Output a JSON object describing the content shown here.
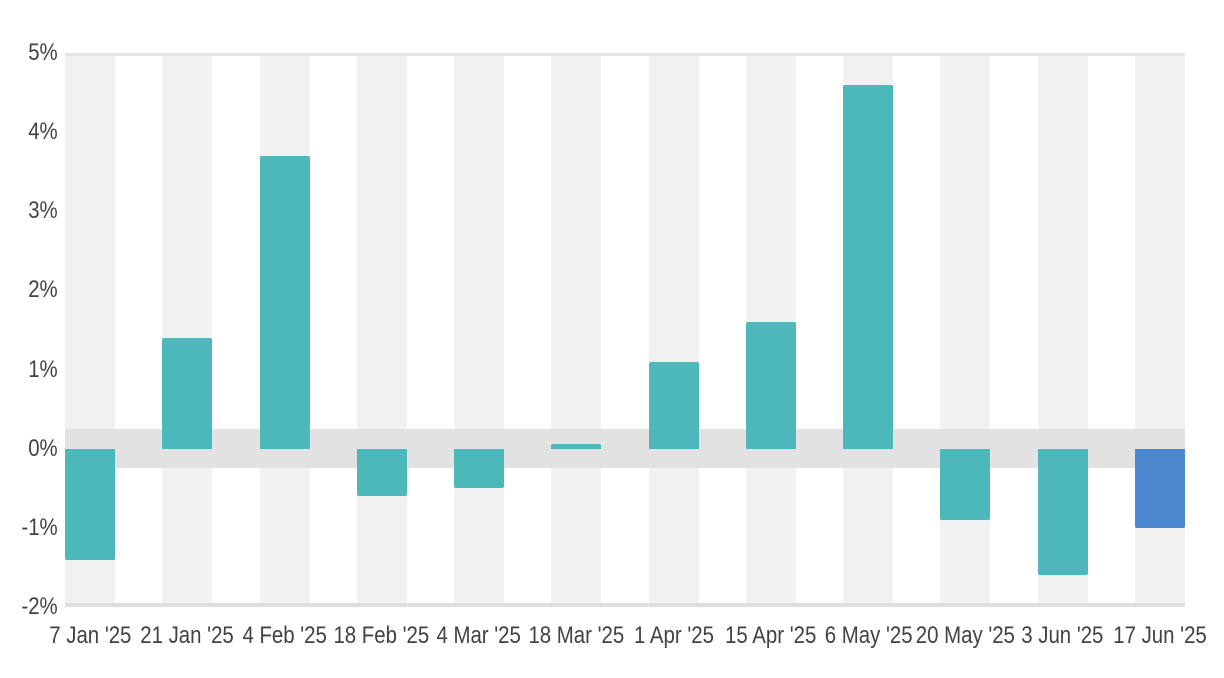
{
  "chart_data": {
    "type": "bar",
    "title": "",
    "subtitle": "",
    "xlabel": "",
    "ylabel": "",
    "legend": "none",
    "grid": "top and bottom plot borders only, no interior gridlines",
    "ylim": [
      -2,
      5
    ],
    "yticks": {
      "values": [
        5,
        4,
        3,
        2,
        1,
        0,
        -1,
        -2
      ],
      "labels": [
        "5%",
        "4%",
        "3%",
        "2%",
        "1%",
        "0%",
        "-1%",
        "-2%"
      ]
    },
    "categories": [
      "7 Jan '25",
      "21 Jan '25",
      "4 Feb '25",
      "18 Feb '25",
      "4 Mar '25",
      "18 Mar '25",
      "1 Apr '25",
      "15 Apr '25",
      "6 May '25",
      "20 May '25",
      "3 Jun '25",
      "17 Jun '25"
    ],
    "values": [
      -1.4,
      1.4,
      3.7,
      -0.6,
      -0.5,
      0.05,
      1.1,
      1.6,
      4.6,
      -0.9,
      -1.6,
      -1.0
    ],
    "unit": "%",
    "highlight_index": 11,
    "zero_band": {
      "from": -0.25,
      "to": 0.25
    },
    "layout_hints": {
      "column_background_stripes": "light gray stripe behind every bar, full plot height",
      "legend_position": "none"
    }
  },
  "colors": {
    "bar_default": "#4cb8bb",
    "bar_highlight": "#4d87d0",
    "column_stripe": "#f1f1f1",
    "zero_band": "#e2e2e2",
    "plot_top_border": "#e3e3e3",
    "plot_bottom_border": "#dedede",
    "axis_text": "#424242",
    "background": "#ffffff"
  }
}
